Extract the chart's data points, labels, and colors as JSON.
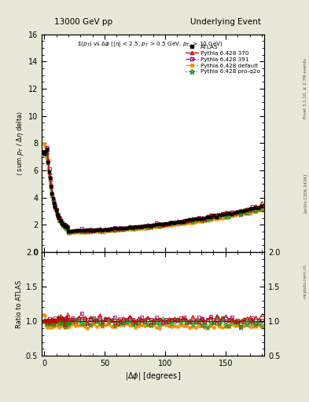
{
  "title_left": "13000 GeV pp",
  "title_right": "Underlying Event",
  "ylim_main": [
    0,
    16
  ],
  "ylim_ratio": [
    0.5,
    2.0
  ],
  "yticks_main": [
    0,
    2,
    4,
    6,
    8,
    10,
    12,
    14,
    16
  ],
  "yticks_ratio": [
    0.5,
    1.0,
    1.5,
    2.0
  ],
  "xlim": [
    -2,
    182
  ],
  "xticks": [
    0,
    50,
    100,
    150
  ],
  "background_color": "#e8e8d8",
  "plot_bg": "#ffffff",
  "colors": {
    "atlas": "#000000",
    "p370": "#cc0000",
    "p391": "#990066",
    "default": "#ff8c00",
    "proq2o": "#228b22"
  }
}
